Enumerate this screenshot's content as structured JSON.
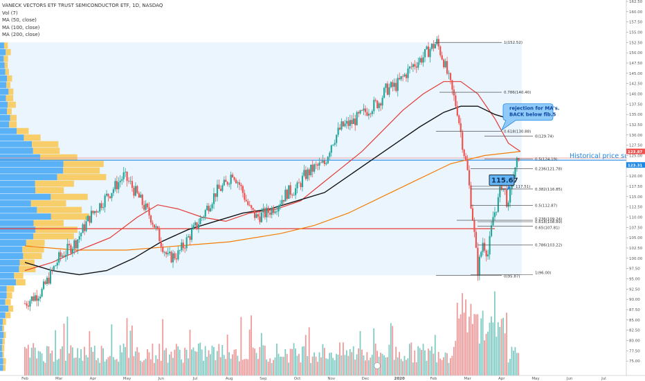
{
  "legend": {
    "title": "VANECK VECTORS ETF TRUST SEMICONDUCTOR ETF, 1D, NASDAQ",
    "lines": [
      "Vol (7)",
      "MA (50, close)",
      "MA (100, close)",
      "MA (200, close)"
    ]
  },
  "colors": {
    "up": "#26a69a",
    "down": "#ef5350",
    "ma50": "#e53935",
    "ma100": "#111111",
    "ma200": "#f57c00",
    "support": "#1e88e5",
    "fib": "#555555",
    "highlight": "#e3f2fd",
    "vol_up": "#80cbc4",
    "vol_down": "#ef9a9a",
    "vp_up": "#42a5f5",
    "vp_down": "#f9c74f"
  },
  "chart_data": {
    "type": "candlestick",
    "x_axis": {
      "labels": [
        "Feb",
        "Mar",
        "Apr",
        "May",
        "Jun",
        "Jul",
        "Aug",
        "Sep",
        "Oct",
        "Nov",
        "Dec",
        "2020",
        "Feb",
        "Mar",
        "Apr",
        "May",
        "Jun",
        "Jul",
        "Aug"
      ],
      "positions": [
        0,
        1,
        2,
        3,
        4,
        5,
        6,
        7,
        8,
        9,
        10,
        11,
        12,
        13,
        14,
        15,
        16,
        17,
        18
      ]
    },
    "y_axis": {
      "min": 72.5,
      "max": 162.5,
      "ticks": [
        75,
        77.5,
        80,
        82.5,
        85,
        87.5,
        90,
        92.5,
        95,
        97.5,
        100,
        102.5,
        105,
        107.5,
        110,
        112.5,
        115,
        117.5,
        120,
        122.5,
        125,
        127.5,
        130,
        132.5,
        135,
        137.5,
        140,
        142.5,
        145,
        147.5,
        150,
        152.5,
        155,
        157.5,
        160,
        162.5
      ],
      "tick_labels": [
        "75.00",
        "77.50",
        "80.00",
        "82.50",
        "85.00",
        "87.50",
        "90.00",
        "92.50",
        "95.00",
        "97.50",
        "100.00",
        "102.50",
        "105.00",
        "107.50",
        "110.00",
        "112.50",
        "115.00",
        "117.50",
        "120.00",
        "122.50",
        "125.00",
        "127.50",
        "130.00",
        "132.50",
        "135.00",
        "137.50",
        "140.00",
        "142.50",
        "145.00",
        "147.50",
        "150.00",
        "152.50",
        "155.00",
        "157.50",
        "160.00",
        "162.50"
      ]
    },
    "price_path": [
      [
        0.0,
        89
      ],
      [
        0.5,
        92
      ],
      [
        1.0,
        100
      ],
      [
        1.5,
        104
      ],
      [
        1.9,
        110
      ],
      [
        2.3,
        114
      ],
      [
        2.6,
        117
      ],
      [
        2.9,
        120
      ],
      [
        3.1,
        118
      ],
      [
        3.4,
        114
      ],
      [
        3.7,
        110
      ],
      [
        4.0,
        104
      ],
      [
        4.2,
        100
      ],
      [
        4.5,
        101
      ],
      [
        4.8,
        105
      ],
      [
        5.2,
        110
      ],
      [
        5.6,
        116
      ],
      [
        5.9,
        118
      ],
      [
        6.1,
        121
      ],
      [
        6.3,
        118
      ],
      [
        6.6,
        112
      ],
      [
        6.8,
        110
      ],
      [
        7.1,
        111
      ],
      [
        7.4,
        113
      ],
      [
        7.7,
        116
      ],
      [
        8.0,
        117
      ],
      [
        8.2,
        120
      ],
      [
        8.5,
        122
      ],
      [
        8.8,
        123
      ],
      [
        9.0,
        128
      ],
      [
        9.3,
        132
      ],
      [
        9.6,
        133
      ],
      [
        9.9,
        135
      ],
      [
        10.2,
        137
      ],
      [
        10.4,
        138
      ],
      [
        10.6,
        141
      ],
      [
        10.9,
        142
      ],
      [
        11.1,
        144
      ],
      [
        11.4,
        147
      ],
      [
        11.7,
        149
      ],
      [
        11.9,
        151
      ],
      [
        12.1,
        152.5
      ],
      [
        12.3,
        148
      ],
      [
        12.5,
        142
      ],
      [
        12.7,
        136
      ],
      [
        12.85,
        128
      ],
      [
        13.0,
        121
      ],
      [
        13.15,
        110
      ],
      [
        13.3,
        97
      ],
      [
        13.45,
        104
      ],
      [
        13.6,
        101
      ],
      [
        13.75,
        110
      ],
      [
        13.9,
        114
      ],
      [
        14.0,
        118
      ],
      [
        14.1,
        116
      ],
      [
        14.2,
        112
      ],
      [
        14.3,
        119
      ],
      [
        14.4,
        121
      ],
      [
        14.5,
        125
      ],
      [
        14.55,
        123.5
      ]
    ],
    "ma50": [
      [
        0.0,
        97
      ],
      [
        0.8,
        99
      ],
      [
        1.6,
        102
      ],
      [
        2.5,
        105
      ],
      [
        3.3,
        110
      ],
      [
        3.9,
        113
      ],
      [
        4.5,
        112
      ],
      [
        5.2,
        110
      ],
      [
        5.9,
        109
      ],
      [
        6.6,
        111
      ],
      [
        7.4,
        112
      ],
      [
        8.1,
        114
      ],
      [
        8.7,
        118
      ],
      [
        9.3,
        122
      ],
      [
        9.9,
        126
      ],
      [
        10.5,
        131
      ],
      [
        11.1,
        136
      ],
      [
        11.7,
        140
      ],
      [
        12.3,
        143
      ],
      [
        12.8,
        143
      ],
      [
        13.3,
        140
      ],
      [
        13.8,
        134
      ],
      [
        14.2,
        128
      ],
      [
        14.55,
        126
      ]
    ],
    "ma100": [
      [
        0.0,
        99
      ],
      [
        0.8,
        97
      ],
      [
        1.6,
        96
      ],
      [
        2.4,
        97
      ],
      [
        3.2,
        100
      ],
      [
        4.0,
        104
      ],
      [
        4.8,
        107
      ],
      [
        5.6,
        109
      ],
      [
        6.4,
        111
      ],
      [
        7.2,
        112
      ],
      [
        8.0,
        114
      ],
      [
        8.8,
        116
      ],
      [
        9.5,
        120
      ],
      [
        10.2,
        124
      ],
      [
        10.9,
        128
      ],
      [
        11.6,
        132
      ],
      [
        12.3,
        135.5
      ],
      [
        12.8,
        137
      ],
      [
        13.3,
        137
      ],
      [
        13.8,
        135
      ],
      [
        14.2,
        134
      ],
      [
        14.55,
        134
      ]
    ],
    "ma200": [
      [
        0.0,
        103
      ],
      [
        1.5,
        102
      ],
      [
        3.0,
        102
      ],
      [
        4.5,
        103
      ],
      [
        6.0,
        104
      ],
      [
        7.5,
        106
      ],
      [
        8.5,
        108
      ],
      [
        9.5,
        111
      ],
      [
        10.5,
        115
      ],
      [
        11.5,
        119
      ],
      [
        12.5,
        123
      ],
      [
        13.5,
        125
      ],
      [
        14.55,
        126
      ]
    ],
    "support_price": 123.87,
    "support_label": "Historical price support",
    "current_price_labels": [
      "123.87",
      "123.31"
    ],
    "resistance_price": 107.2,
    "fib_levels": [
      {
        "price": 152.52,
        "label": "1(152.52)"
      },
      {
        "price": 140.4,
        "label": "0.786(140.40)"
      },
      {
        "price": 130.88,
        "label": "0.618(130.88)"
      },
      {
        "price": 129.74,
        "label": "0(129.74)"
      },
      {
        "price": 124.19,
        "label": "0.5(124.19)"
      },
      {
        "price": 121.78,
        "label": "0.236(121.78)"
      },
      {
        "price": 117.51,
        "label": "117.51)"
      },
      {
        "price": 116.85,
        "label": "0.382(116.85)"
      },
      {
        "price": 112.87,
        "label": "0.5(112.87)"
      },
      {
        "price": 109.24,
        "label": "0.236(109.24)"
      },
      {
        "price": 108.89,
        "label": "0.618(108.89)"
      },
      {
        "price": 107.81,
        "label": "0.65(107.81)"
      },
      {
        "price": 103.22,
        "label": "0.786(103.22)"
      },
      {
        "price": 96.0,
        "label": "1(96.00)"
      },
      {
        "price": 95.87,
        "label": "0(95.87)"
      }
    ],
    "annotations": [
      {
        "text": "rejection for MA's.",
        "text2": "BACK below fib.5"
      },
      {
        "text": "115.67"
      }
    ],
    "volume_seed": 7
  }
}
